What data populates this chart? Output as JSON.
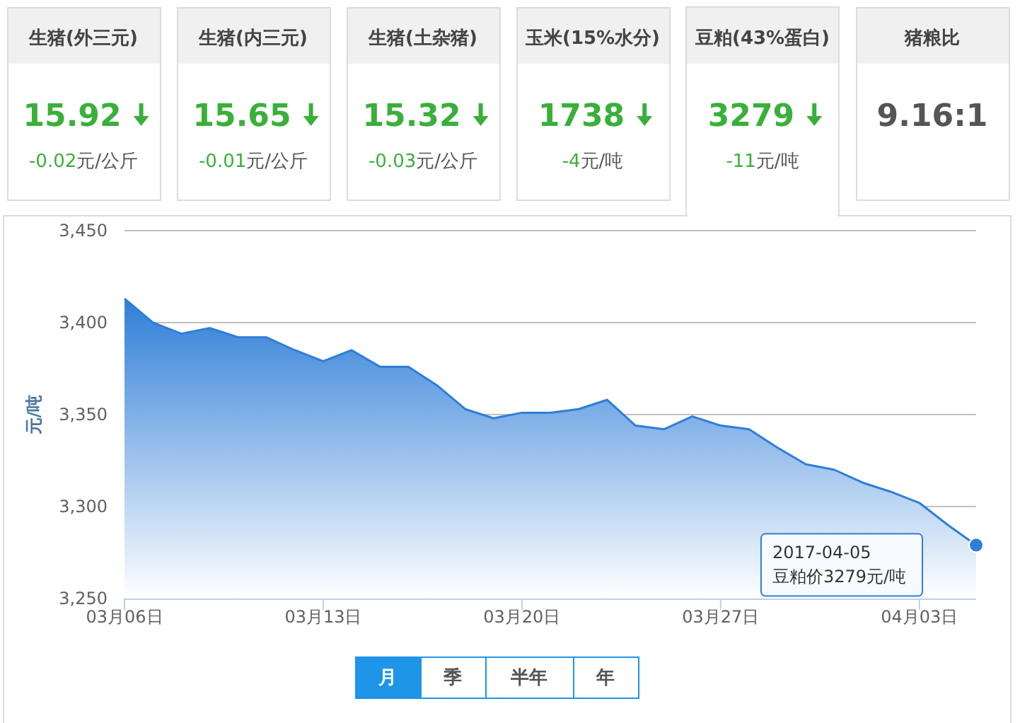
{
  "chart_data": [
    {
      "type": "other",
      "categories": [
        "生猪(外三元)",
        "生猪(内三元)",
        "生猪(土杂猪)",
        "玉米(15%水分)",
        "豆粕(43%蛋白)",
        "猪粮比"
      ],
      "value_labels": [
        "15.92",
        "15.65",
        "15.32",
        "1738",
        "3279",
        "9.16:1"
      ],
      "annotations": [
        "-0.02元/公斤",
        "-0.01元/公斤",
        "-0.03元/公斤",
        "-4元/吨",
        "-11元/吨"
      ]
    },
    {
      "type": "area",
      "ylabel": "元/吨",
      "x": [
        "2017-03-06",
        "2017-03-07",
        "2017-03-08",
        "2017-03-09",
        "2017-03-10",
        "2017-03-11",
        "2017-03-12",
        "2017-03-13",
        "2017-03-14",
        "2017-03-15",
        "2017-03-16",
        "2017-03-17",
        "2017-03-18",
        "2017-03-19",
        "2017-03-20",
        "2017-03-21",
        "2017-03-22",
        "2017-03-23",
        "2017-03-24",
        "2017-03-25",
        "2017-03-26",
        "2017-03-27",
        "2017-03-28",
        "2017-03-29",
        "2017-03-30",
        "2017-03-31",
        "2017-04-01",
        "2017-04-02",
        "2017-04-03",
        "2017-04-04",
        "2017-04-05"
      ],
      "series": [
        {
          "color": "#2f7ed8",
          "values": [
            3413,
            3400,
            3394,
            3397,
            3392,
            3392,
            3385,
            3379,
            3385,
            3376,
            3376,
            3366,
            3353,
            3348,
            3351,
            3351,
            3353,
            3358,
            3344,
            3342,
            3349,
            3344,
            3342,
            3332,
            3323,
            3320,
            3313,
            3308,
            3302,
            3290,
            3279
          ]
        }
      ],
      "xlim": [
        "2017-03-06",
        "2017-04-05"
      ],
      "xticks": [
        {
          "value": "2017-03-06",
          "label": "03月06日"
        },
        {
          "value": "2017-03-13",
          "label": "03月13日"
        },
        {
          "value": "2017-03-20",
          "label": "03月20日"
        },
        {
          "value": "2017-03-27",
          "label": "03月27日"
        },
        {
          "value": "2017-04-03",
          "label": "04月03日"
        }
      ],
      "ylim": [
        3250,
        3450
      ],
      "yticks": [
        {
          "value": 3250,
          "label": "3,250"
        },
        {
          "value": 3300,
          "label": "3,300"
        },
        {
          "value": 3350,
          "label": "3,350"
        },
        {
          "value": 3400,
          "label": "3,400"
        },
        {
          "value": 3450,
          "label": "3,450"
        }
      ],
      "grid": "y",
      "annotations": [
        "2017-04-05",
        "豆粕价3279元/吨",
        "月",
        "季",
        "半年",
        "年"
      ]
    }
  ]
}
